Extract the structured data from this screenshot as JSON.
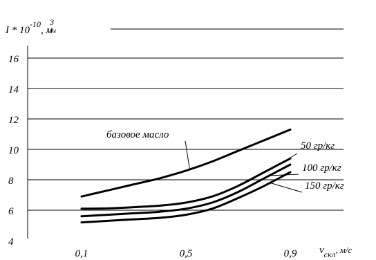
{
  "chart_data": {
    "type": "line",
    "title": "",
    "ylabel": {
      "prefix": "I * 10",
      "exponent": "-10",
      "unit_base": ", м",
      "unit_exp": "3",
      "unit_tail": "/ч"
    },
    "xlabel": {
      "base": "v",
      "subscript": "скл",
      "unit": ", м/с"
    },
    "ylim": [
      4,
      17
    ],
    "xlim": [
      0,
      1.05
    ],
    "y_ticks": [
      {
        "value": 4,
        "label": "4"
      },
      {
        "value": 6,
        "label": "6"
      },
      {
        "value": 8,
        "label": "8"
      },
      {
        "value": 10,
        "label": "10"
      },
      {
        "value": 12,
        "label": "12"
      },
      {
        "value": 14,
        "label": "14"
      },
      {
        "value": 16,
        "label": "16"
      }
    ],
    "x_ticks": [
      {
        "value": 0.1,
        "label": "0,1"
      },
      {
        "value": 0.5,
        "label": "0,5"
      },
      {
        "value": 0.9,
        "label": "0,9"
      }
    ],
    "gridlines_y": [
      6,
      8,
      10,
      12,
      14,
      16
    ],
    "series": [
      {
        "name": "базовое масло",
        "x": [
          0.1,
          0.2,
          0.3,
          0.4,
          0.5,
          0.6,
          0.7,
          0.8,
          0.9
        ],
        "y": [
          6.9,
          7.3,
          7.7,
          8.1,
          8.6,
          9.2,
          9.9,
          10.6,
          11.3
        ]
      },
      {
        "name": "50 гр/кг",
        "x": [
          0.1,
          0.2,
          0.3,
          0.4,
          0.5,
          0.6,
          0.7,
          0.8,
          0.9
        ],
        "y": [
          6.1,
          6.12,
          6.2,
          6.3,
          6.5,
          6.9,
          7.6,
          8.5,
          9.4
        ]
      },
      {
        "name": "100 гр/кг",
        "x": [
          0.1,
          0.2,
          0.3,
          0.4,
          0.5,
          0.6,
          0.7,
          0.8,
          0.9
        ],
        "y": [
          5.6,
          5.7,
          5.8,
          5.9,
          6.1,
          6.5,
          7.2,
          8.1,
          9.0
        ]
      },
      {
        "name": "150 гр/кг",
        "x": [
          0.1,
          0.2,
          0.3,
          0.4,
          0.5,
          0.6,
          0.7,
          0.8,
          0.9
        ],
        "y": [
          5.2,
          5.3,
          5.4,
          5.5,
          5.7,
          6.1,
          6.8,
          7.6,
          8.5
        ]
      }
    ],
    "annotations": [
      {
        "series": 0,
        "label": "базовое масло",
        "leader_from_x": 0.4,
        "leader_to_x": 0.62
      },
      {
        "series": 1,
        "label": "50 гр/кг",
        "leader_from_x": 0.8,
        "leader_to_x": 0.9
      },
      {
        "series": 2,
        "label": "100 гр/кг",
        "leader_from_x": 0.8,
        "leader_to_x": 0.9
      },
      {
        "series": 3,
        "label": "150 гр/кг",
        "leader_from_x": 0.8,
        "leader_to_x": 0.9
      }
    ]
  }
}
